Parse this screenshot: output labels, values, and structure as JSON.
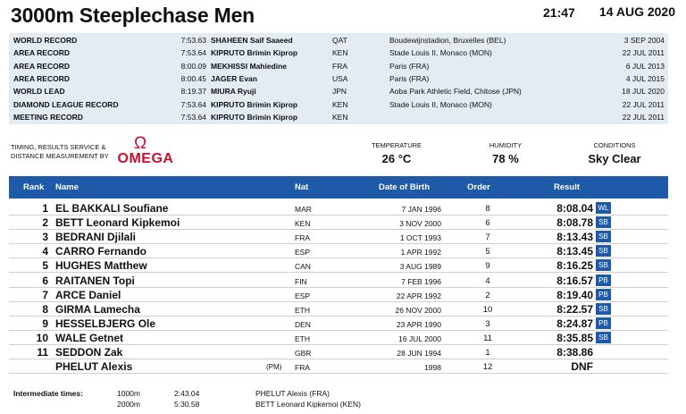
{
  "header": {
    "title": "3000m Steeplechase Men",
    "time": "21:47",
    "date": "14 AUG 2020"
  },
  "records": [
    {
      "label": "WORLD RECORD",
      "time": "7:53.63",
      "name": "SHAHEEN Saif Saaeed",
      "nat": "QAT",
      "venue": "Boudewijnstadion, Bruxelles (BEL)",
      "date": "3 SEP 2004"
    },
    {
      "label": "AREA RECORD",
      "time": "7:53.64",
      "name": "KIPRUTO Brimin Kiprop",
      "nat": "KEN",
      "venue": "Stade Louis II, Monaco (MON)",
      "date": "22 JUL 2011"
    },
    {
      "label": "AREA RECORD",
      "time": "8:00.09",
      "name": "MEKHISSI Mahiedine",
      "nat": "FRA",
      "venue": "Paris (FRA)",
      "date": "6 JUL 2013"
    },
    {
      "label": "AREA RECORD",
      "time": "8:00.45",
      "name": "JAGER Evan",
      "nat": "USA",
      "venue": "Paris (FRA)",
      "date": "4 JUL 2015"
    },
    {
      "label": "WORLD LEAD",
      "time": "8:19.37",
      "name": "MIURA Ryuji",
      "nat": "JPN",
      "venue": "Aoba Park Athletic Field, Chitose (JPN)",
      "date": "18 JUL 2020"
    },
    {
      "label": "DIAMOND LEAGUE RECORD",
      "time": "7:53.64",
      "name": "KIPRUTO Brimin Kiprop",
      "nat": "KEN",
      "venue": "Stade Louis II, Monaco (MON)",
      "date": "22 JUL 2011"
    },
    {
      "label": "MEETING RECORD",
      "time": "7:53.64",
      "name": "KIPRUTO Brimin Kiprop",
      "nat": "KEN",
      "venue": "",
      "date": "22 JUL 2011"
    }
  ],
  "timing": {
    "text_line1": "TIMING, RESULTS SERVICE &",
    "text_line2": "DISTANCE MEASUREMENT BY",
    "logo_symbol": "Ω",
    "logo_word": "OMEGA",
    "logo_color": "#c8102e"
  },
  "conditions": {
    "temperature_label": "TEMPERATURE",
    "temperature_value": "26 °C",
    "humidity_label": "HUMIDITY",
    "humidity_value": "78 %",
    "conditions_label": "CONDITIONS",
    "conditions_value": "Sky Clear"
  },
  "results_header": {
    "rank": "Rank",
    "name": "Name",
    "nat": "Nat",
    "dob": "Date of Birth",
    "order": "Order",
    "result": "Result",
    "color": "#1e5aa8"
  },
  "results": [
    {
      "rank": "1",
      "name": "EL BAKKALI Soufiane",
      "note": "",
      "nat": "MAR",
      "dob": "7 JAN 1996",
      "order": "8",
      "result": "8:08.04",
      "badge": "WL"
    },
    {
      "rank": "2",
      "name": "BETT Leonard Kipkemoi",
      "note": "",
      "nat": "KEN",
      "dob": "3 NOV 2000",
      "order": "6",
      "result": "8:08.78",
      "badge": "SB"
    },
    {
      "rank": "3",
      "name": "BEDRANI Djilali",
      "note": "",
      "nat": "FRA",
      "dob": "1 OCT 1993",
      "order": "7",
      "result": "8:13.43",
      "badge": "SB"
    },
    {
      "rank": "4",
      "name": "CARRO Fernando",
      "note": "",
      "nat": "ESP",
      "dob": "1 APR 1992",
      "order": "5",
      "result": "8:13.45",
      "badge": "SB"
    },
    {
      "rank": "5",
      "name": "HUGHES Matthew",
      "note": "",
      "nat": "CAN",
      "dob": "3 AUG 1989",
      "order": "9",
      "result": "8:16.25",
      "badge": "SB"
    },
    {
      "rank": "6",
      "name": "RAITANEN Topi",
      "note": "",
      "nat": "FIN",
      "dob": "7 FEB 1996",
      "order": "4",
      "result": "8:16.57",
      "badge": "PB"
    },
    {
      "rank": "7",
      "name": "ARCE Daniel",
      "note": "",
      "nat": "ESP",
      "dob": "22 APR 1992",
      "order": "2",
      "result": "8:19.40",
      "badge": "PB"
    },
    {
      "rank": "8",
      "name": "GIRMA Lamecha",
      "note": "",
      "nat": "ETH",
      "dob": "26 NOV 2000",
      "order": "10",
      "result": "8:22.57",
      "badge": "SB"
    },
    {
      "rank": "9",
      "name": "HESSELBJERG Ole",
      "note": "",
      "nat": "DEN",
      "dob": "23 APR 1990",
      "order": "3",
      "result": "8:24.87",
      "badge": "PB"
    },
    {
      "rank": "10",
      "name": "WALE Getnet",
      "note": "",
      "nat": "ETH",
      "dob": "16 JUL 2000",
      "order": "11",
      "result": "8:35.85",
      "badge": "SB"
    },
    {
      "rank": "11",
      "name": "SEDDON Zak",
      "note": "",
      "nat": "GBR",
      "dob": "28 JUN 1994",
      "order": "1",
      "result": "8:38.86",
      "badge": ""
    },
    {
      "rank": "",
      "name": "PHELUT Alexis",
      "note": "(PM)",
      "nat": "FRA",
      "dob": "1998",
      "order": "12",
      "result": "DNF",
      "badge": ""
    }
  ],
  "intermediate": {
    "label": "Intermediate times:",
    "splits": [
      {
        "distance": "1000m",
        "time": "2:43.04",
        "athlete": "PHELUT Alexis (FRA)"
      },
      {
        "distance": "2000m",
        "time": "5:30.58",
        "athlete": "BETT Leonard Kipkemoi (KEN)"
      }
    ]
  }
}
